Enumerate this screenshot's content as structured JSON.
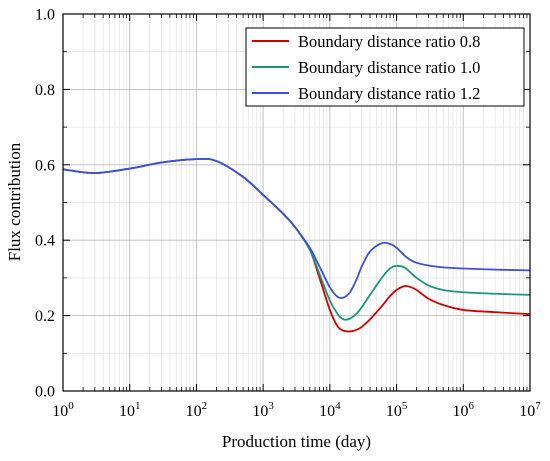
{
  "chart_data": {
    "type": "line",
    "title": "",
    "xlabel": "Production time (day)",
    "ylabel": "Flux contribution",
    "xscale": "log",
    "xlim": [
      1,
      10000000
    ],
    "ylim": [
      0,
      1.0
    ],
    "grid": true,
    "legend_position": "top-right",
    "x_ticks": [
      {
        "base": "10",
        "exp": "0"
      },
      {
        "base": "10",
        "exp": "1"
      },
      {
        "base": "10",
        "exp": "2"
      },
      {
        "base": "10",
        "exp": "3"
      },
      {
        "base": "10",
        "exp": "4"
      },
      {
        "base": "10",
        "exp": "5"
      },
      {
        "base": "10",
        "exp": "6"
      },
      {
        "base": "10",
        "exp": "7"
      }
    ],
    "y_ticks": [
      "0.0",
      "0.2",
      "0.4",
      "0.6",
      "0.8",
      "1.0"
    ],
    "series": [
      {
        "name": "Boundary distance ratio 0.8",
        "color": "#d40000",
        "x": [
          1,
          3,
          10,
          30,
          100,
          200,
          500,
          1000,
          2000,
          3000,
          5000,
          7000,
          10000,
          13000,
          16000,
          20000,
          25000,
          30000,
          40000,
          60000,
          80000,
          100000,
          130000,
          160000,
          200000,
          300000,
          500000,
          1000000,
          3000000,
          10000000
        ],
        "y": [
          0.588,
          0.578,
          0.59,
          0.606,
          0.615,
          0.61,
          0.568,
          0.52,
          0.47,
          0.435,
          0.375,
          0.3,
          0.215,
          0.172,
          0.16,
          0.158,
          0.162,
          0.17,
          0.19,
          0.225,
          0.252,
          0.268,
          0.278,
          0.276,
          0.268,
          0.245,
          0.228,
          0.215,
          0.209,
          0.204
        ]
      },
      {
        "name": "Boundary distance ratio 1.0",
        "color": "#1a9680",
        "x": [
          1,
          3,
          10,
          30,
          100,
          200,
          500,
          1000,
          2000,
          3000,
          5000,
          7000,
          10000,
          13000,
          16000,
          20000,
          25000,
          30000,
          40000,
          60000,
          80000,
          100000,
          130000,
          160000,
          200000,
          300000,
          500000,
          1000000,
          3000000,
          10000000
        ],
        "y": [
          0.588,
          0.578,
          0.59,
          0.606,
          0.615,
          0.61,
          0.568,
          0.52,
          0.47,
          0.435,
          0.375,
          0.31,
          0.24,
          0.205,
          0.19,
          0.192,
          0.205,
          0.222,
          0.255,
          0.3,
          0.325,
          0.332,
          0.328,
          0.315,
          0.3,
          0.28,
          0.268,
          0.262,
          0.258,
          0.255
        ]
      },
      {
        "name": "Boundary distance ratio 1.2",
        "color": "#3c50e0",
        "x": [
          1,
          3,
          10,
          30,
          100,
          200,
          500,
          1000,
          2000,
          3000,
          5000,
          7000,
          10000,
          13000,
          16000,
          20000,
          25000,
          30000,
          40000,
          60000,
          80000,
          100000,
          130000,
          160000,
          200000,
          300000,
          500000,
          1000000,
          3000000,
          10000000
        ],
        "y": [
          0.588,
          0.578,
          0.59,
          0.606,
          0.615,
          0.61,
          0.568,
          0.52,
          0.47,
          0.435,
          0.38,
          0.33,
          0.275,
          0.25,
          0.248,
          0.262,
          0.295,
          0.33,
          0.37,
          0.392,
          0.39,
          0.38,
          0.36,
          0.348,
          0.34,
          0.333,
          0.328,
          0.325,
          0.322,
          0.32
        ]
      }
    ]
  }
}
